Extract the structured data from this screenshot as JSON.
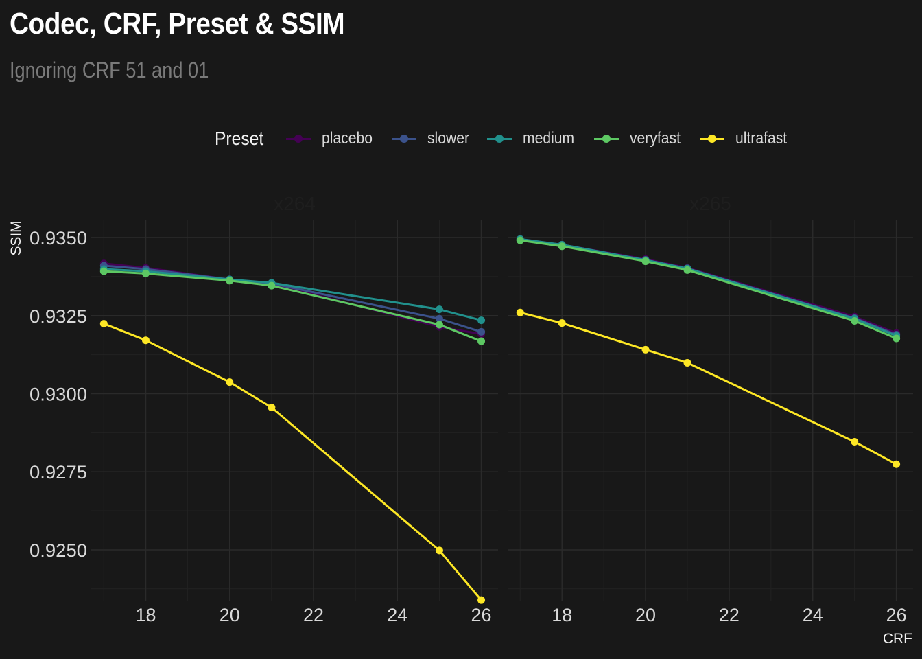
{
  "chart_data": {
    "type": "line",
    "title": "Codec, CRF, Preset & SSIM",
    "subtitle": "Ignoring CRF 51 and 01",
    "xlabel": "CRF",
    "ylabel": "SSIM",
    "xlim": [
      16.7,
      26.4
    ],
    "ylim": [
      0.92335,
      0.93555
    ],
    "x_ticks": [
      18,
      20,
      22,
      24,
      26
    ],
    "x_tick_labels": [
      "18",
      "20",
      "22",
      "24",
      "26"
    ],
    "y_ticks": [
      0.925,
      0.9275,
      0.93,
      0.9325,
      0.935
    ],
    "y_tick_labels": [
      "0.9250",
      "0.9275",
      "0.9300",
      "0.9325",
      "0.9350"
    ],
    "grid": true,
    "legend": {
      "title": "Preset",
      "placement": "top",
      "entries": [
        "placebo",
        "slower",
        "medium",
        "veryfast",
        "ultrafast"
      ]
    },
    "colors": {
      "placebo": "#440154",
      "slower": "#3b528b",
      "medium": "#21908c",
      "veryfast": "#5dc863",
      "ultrafast": "#fde725"
    },
    "x": [
      17,
      18,
      20,
      21,
      25,
      26
    ],
    "facets": [
      {
        "label": "x264",
        "series": [
          {
            "name": "placebo",
            "values": [
              0.93417,
              0.93403,
              0.93366,
              0.93353,
              0.93214,
              0.93191
            ]
          },
          {
            "name": "slower",
            "values": [
              0.9341,
              0.93399,
              0.93366,
              0.93353,
              0.9324,
              0.93198
            ]
          },
          {
            "name": "medium",
            "values": [
              0.93399,
              0.93392,
              0.93366,
              0.93355,
              0.9327,
              0.93235
            ]
          },
          {
            "name": "veryfast",
            "values": [
              0.93392,
              0.93385,
              0.93362,
              0.93346,
              0.93221,
              0.93168
            ]
          },
          {
            "name": "ultrafast",
            "values": [
              0.93224,
              0.93171,
              0.93037,
              0.92956,
              0.92498,
              0.92339
            ]
          }
        ]
      },
      {
        "label": "x265",
        "series": [
          {
            "name": "placebo",
            "values": [
              0.93495,
              0.93477,
              0.93431,
              0.93403,
              0.93247,
              0.93194
            ]
          },
          {
            "name": "slower",
            "values": [
              0.93493,
              0.93477,
              0.93428,
              0.93401,
              0.93242,
              0.93189
            ]
          },
          {
            "name": "medium",
            "values": [
              0.93495,
              0.93477,
              0.93428,
              0.93401,
              0.9324,
              0.93185
            ]
          },
          {
            "name": "veryfast",
            "values": [
              0.93491,
              0.93472,
              0.93424,
              0.93396,
              0.93233,
              0.93177
            ]
          },
          {
            "name": "ultrafast",
            "values": [
              0.9326,
              0.93226,
              0.93141,
              0.93099,
              0.92846,
              0.92774
            ]
          }
        ]
      }
    ]
  }
}
